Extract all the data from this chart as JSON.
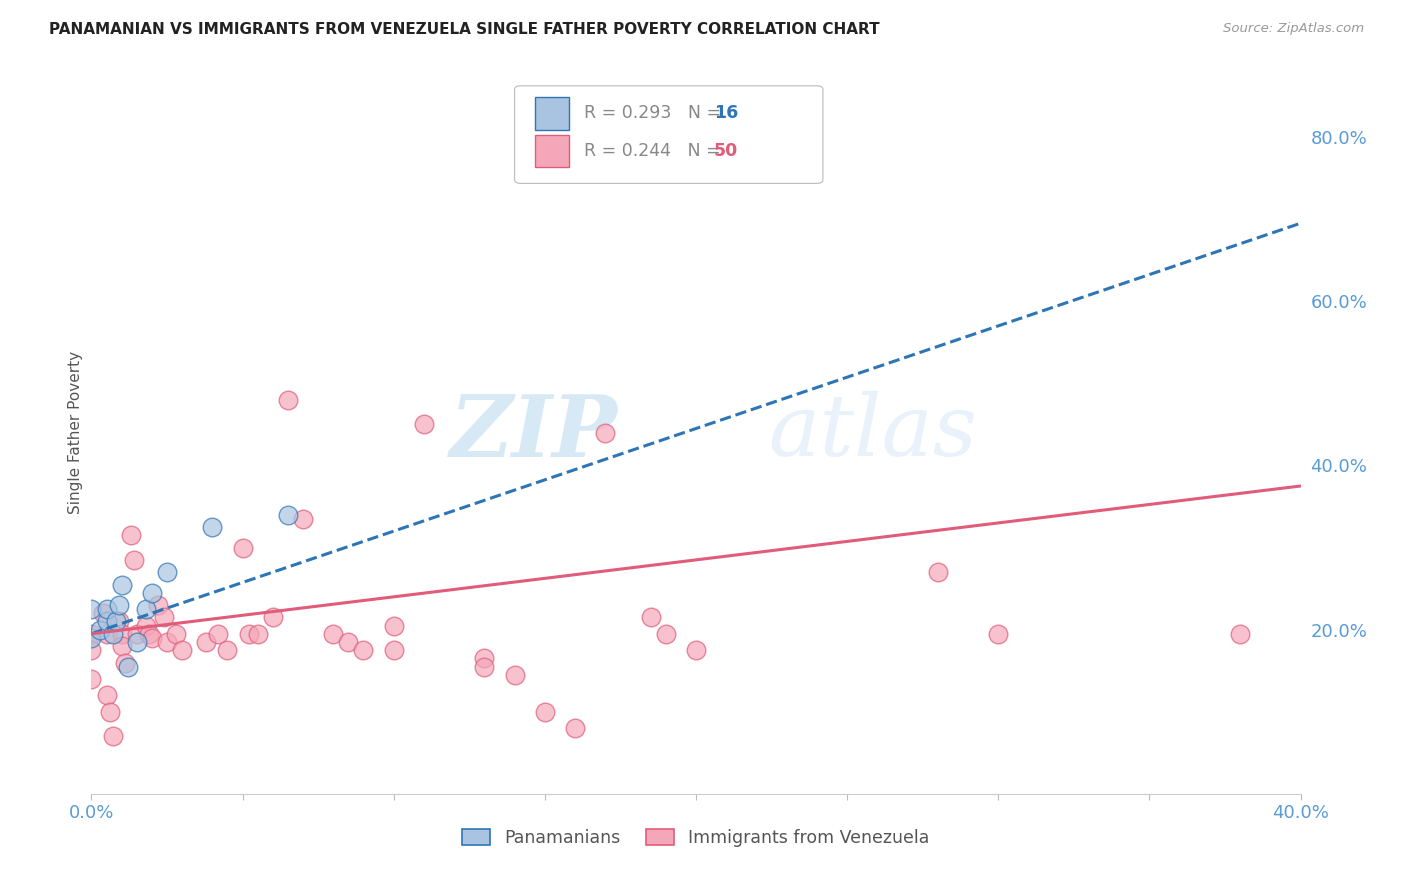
{
  "title": "PANAMANIAN VS IMMIGRANTS FROM VENEZUELA SINGLE FATHER POVERTY CORRELATION CHART",
  "source": "Source: ZipAtlas.com",
  "tick_color": "#5b9bd5",
  "ylabel": "Single Father Poverty",
  "xlim": [
    0.0,
    0.4
  ],
  "ylim": [
    0.0,
    0.88
  ],
  "x_ticks": [
    0.0,
    0.05,
    0.1,
    0.15,
    0.2,
    0.25,
    0.3,
    0.35,
    0.4
  ],
  "y_ticks_right": [
    0.0,
    0.2,
    0.4,
    0.6,
    0.8
  ],
  "y_tick_labels_right": [
    "",
    "20.0%",
    "40.0%",
    "60.0%",
    "80.0%"
  ],
  "pan_color": "#a8c4e0",
  "pan_edge_color": "#2e75b6",
  "ven_color": "#f4a7b9",
  "ven_edge_color": "#e05c7a",
  "watermark_zip": "ZIP",
  "watermark_atlas": "atlas",
  "panamanians_x": [
    0.0,
    0.0,
    0.003,
    0.005,
    0.005,
    0.007,
    0.008,
    0.009,
    0.01,
    0.012,
    0.015,
    0.018,
    0.02,
    0.025,
    0.04,
    0.065
  ],
  "panamanians_y": [
    0.19,
    0.225,
    0.2,
    0.21,
    0.225,
    0.195,
    0.21,
    0.23,
    0.255,
    0.155,
    0.185,
    0.225,
    0.245,
    0.27,
    0.325,
    0.34
  ],
  "venezuela_x": [
    0.0,
    0.0,
    0.0,
    0.004,
    0.005,
    0.005,
    0.006,
    0.007,
    0.009,
    0.01,
    0.01,
    0.011,
    0.013,
    0.014,
    0.015,
    0.018,
    0.019,
    0.02,
    0.022,
    0.024,
    0.025,
    0.028,
    0.03,
    0.038,
    0.042,
    0.045,
    0.05,
    0.052,
    0.055,
    0.06,
    0.065,
    0.07,
    0.08,
    0.085,
    0.09,
    0.1,
    0.1,
    0.11,
    0.13,
    0.13,
    0.14,
    0.15,
    0.16,
    0.17,
    0.185,
    0.19,
    0.2,
    0.28,
    0.3,
    0.38
  ],
  "venezuela_y": [
    0.195,
    0.175,
    0.14,
    0.22,
    0.195,
    0.12,
    0.1,
    0.07,
    0.21,
    0.195,
    0.18,
    0.16,
    0.315,
    0.285,
    0.195,
    0.205,
    0.195,
    0.19,
    0.23,
    0.215,
    0.185,
    0.195,
    0.175,
    0.185,
    0.195,
    0.175,
    0.3,
    0.195,
    0.195,
    0.215,
    0.48,
    0.335,
    0.195,
    0.185,
    0.175,
    0.205,
    0.175,
    0.45,
    0.165,
    0.155,
    0.145,
    0.1,
    0.08,
    0.44,
    0.215,
    0.195,
    0.175,
    0.27,
    0.195,
    0.195
  ],
  "pan_trend_x0": 0.0,
  "pan_trend_y0": 0.195,
  "pan_trend_x1": 0.4,
  "pan_trend_y1": 0.695,
  "ven_trend_x0": 0.0,
  "ven_trend_y0": 0.195,
  "ven_trend_x1": 0.4,
  "ven_trend_y1": 0.375,
  "grid_color": "#dddddd",
  "grid_linestyle": "--",
  "background_color": "#ffffff",
  "scatter_size": 180,
  "scatter_alpha": 0.7,
  "trend_linewidth": 2.2
}
